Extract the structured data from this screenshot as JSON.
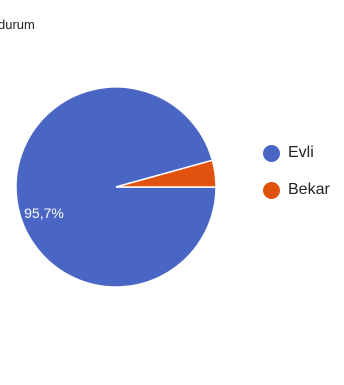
{
  "chart_data": {
    "type": "pie",
    "title": "durum",
    "categories": [
      "Evli",
      "Bekar"
    ],
    "values": [
      95.7,
      4.3
    ],
    "data_labels": [
      "95,7%",
      ""
    ],
    "colors": [
      "#4a66c4",
      "#e2520f"
    ],
    "legend_position": "right"
  }
}
